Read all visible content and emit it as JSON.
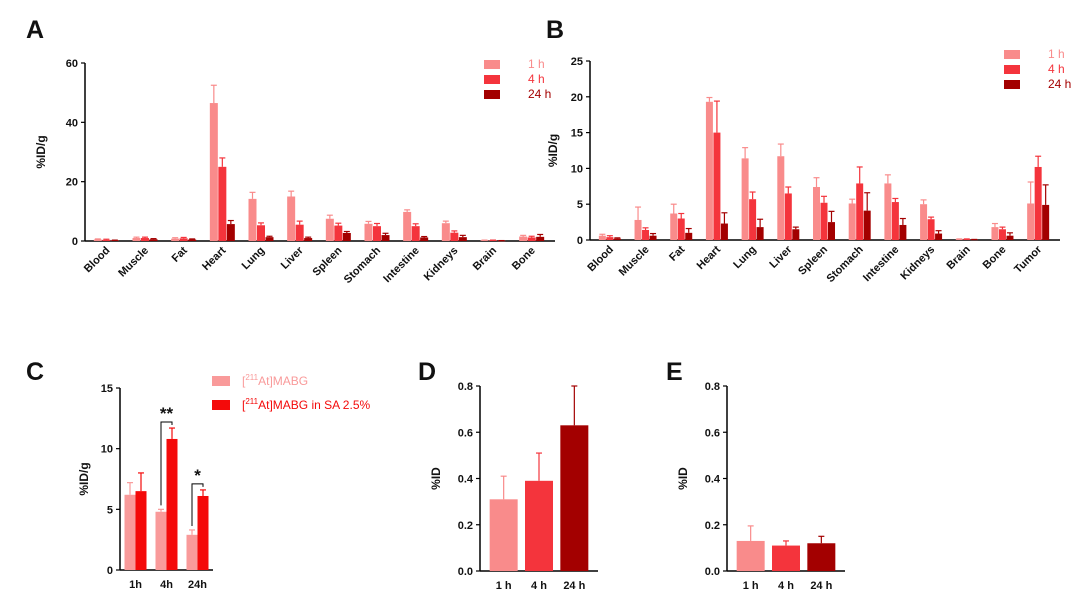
{
  "colors": {
    "h1": "#f98b8b",
    "h4": "#f4343c",
    "h24": "#a30000",
    "c_mabg": "#f99a9a",
    "c_sa": "#f40a0a"
  },
  "chart_data": [
    {
      "panel": "A",
      "type": "bar",
      "ylabel": "%ID/g",
      "ylim": [
        0,
        60
      ],
      "yticks": [
        0,
        20,
        40,
        60
      ],
      "categories": [
        "Blood",
        "Muscle",
        "Fat",
        "Heart",
        "Lung",
        "Liver",
        "Spleen",
        "Stomach",
        "Intestine",
        "Kidneys",
        "Brain",
        "Bone"
      ],
      "legend": "top-right",
      "series": [
        {
          "name": "1 h",
          "values": [
            0.5,
            1.0,
            0.8,
            46.5,
            14.2,
            15.0,
            7.5,
            5.8,
            9.8,
            6.0,
            0.2,
            1.5
          ],
          "err": [
            0.2,
            0.3,
            0.3,
            6.0,
            2.2,
            1.8,
            1.2,
            0.8,
            0.7,
            0.7,
            0.1,
            0.4
          ]
        },
        {
          "name": "4 h",
          "values": [
            0.4,
            1.0,
            0.9,
            25.0,
            5.3,
            5.5,
            5.2,
            5.0,
            5.0,
            2.8,
            0.2,
            1.2
          ],
          "err": [
            0.2,
            0.3,
            0.3,
            3.0,
            0.8,
            1.2,
            0.8,
            0.9,
            0.8,
            0.6,
            0.1,
            0.4
          ]
        },
        {
          "name": "24 h",
          "values": [
            0.2,
            0.6,
            0.5,
            5.7,
            1.3,
            1.0,
            2.7,
            2.0,
            1.2,
            1.3,
            0.1,
            1.4
          ],
          "err": [
            0.1,
            0.2,
            0.2,
            1.2,
            0.3,
            0.3,
            0.5,
            0.6,
            0.3,
            0.6,
            0.05,
            0.8
          ]
        }
      ]
    },
    {
      "panel": "B",
      "type": "bar",
      "ylabel": "%ID/g",
      "ylim": [
        0,
        25
      ],
      "yticks": [
        0,
        5,
        10,
        15,
        20,
        25
      ],
      "categories": [
        "Blood",
        "Muscle",
        "Fat",
        "Heart",
        "Lung",
        "Liver",
        "Spleen",
        "Stomach",
        "Intestine",
        "Kidneys",
        "Brain",
        "Bone",
        "Tumor"
      ],
      "legend": "top-right",
      "series": [
        {
          "name": "1 h",
          "values": [
            0.6,
            2.8,
            3.7,
            19.3,
            11.4,
            11.7,
            7.4,
            5.1,
            7.9,
            5.0,
            0.1,
            1.8,
            5.1
          ],
          "err": [
            0.2,
            1.8,
            1.3,
            0.6,
            1.5,
            1.7,
            1.3,
            0.6,
            1.2,
            0.6,
            0.05,
            0.5,
            3.0
          ]
        },
        {
          "name": "4 h",
          "values": [
            0.4,
            1.4,
            3.0,
            15.0,
            5.7,
            6.5,
            5.2,
            7.9,
            5.3,
            2.9,
            0.1,
            1.5,
            10.2
          ],
          "err": [
            0.2,
            0.3,
            0.7,
            4.4,
            1.0,
            0.9,
            0.9,
            2.3,
            0.5,
            0.3,
            0.05,
            0.3,
            1.5
          ]
        },
        {
          "name": "24 h",
          "values": [
            0.2,
            0.6,
            1.0,
            2.3,
            1.8,
            1.5,
            2.5,
            4.1,
            2.1,
            0.9,
            0.05,
            0.6,
            4.9
          ],
          "err": [
            0.1,
            0.3,
            0.6,
            1.5,
            1.1,
            0.3,
            1.5,
            2.5,
            0.9,
            0.4,
            0.03,
            0.4,
            2.8
          ]
        }
      ]
    },
    {
      "panel": "C",
      "type": "bar",
      "ylabel": "%ID/g",
      "ylim": [
        0,
        15
      ],
      "yticks": [
        0,
        5,
        10,
        15
      ],
      "categories": [
        "1h",
        "4h",
        "24h"
      ],
      "legend": "top-right",
      "series": [
        {
          "name": "[211At]MABG",
          "name_parts": [
            "[",
            "211",
            "At]MABG"
          ],
          "values": [
            6.2,
            4.8,
            2.9
          ],
          "err": [
            1.0,
            0.2,
            0.4
          ]
        },
        {
          "name": "[211At]MABG in SA 2.5%",
          "name_parts": [
            "[",
            "211",
            "At]MABG in SA 2.5%"
          ],
          "values": [
            6.5,
            10.8,
            6.1
          ],
          "err": [
            1.5,
            0.9,
            0.5
          ]
        }
      ],
      "annotations": [
        {
          "category": "4h",
          "text": "**"
        },
        {
          "category": "24h",
          "text": "*"
        }
      ]
    },
    {
      "panel": "D",
      "type": "bar",
      "ylabel": "%ID",
      "ylim": [
        0,
        0.8
      ],
      "yticks": [
        "0.0",
        "0.2",
        "0.4",
        "0.6",
        "0.8"
      ],
      "categories": [
        "1 h",
        "4 h",
        "24 h"
      ],
      "values": [
        0.31,
        0.39,
        0.63
      ],
      "err": [
        0.1,
        0.12,
        0.17
      ]
    },
    {
      "panel": "E",
      "type": "bar",
      "ylabel": "%ID",
      "ylim": [
        0,
        0.8
      ],
      "yticks": [
        "0.0",
        "0.2",
        "0.4",
        "0.6",
        "0.8"
      ],
      "categories": [
        "1 h",
        "4 h",
        "24 h"
      ],
      "values": [
        0.13,
        0.11,
        0.12
      ],
      "err": [
        0.065,
        0.02,
        0.03
      ]
    }
  ]
}
